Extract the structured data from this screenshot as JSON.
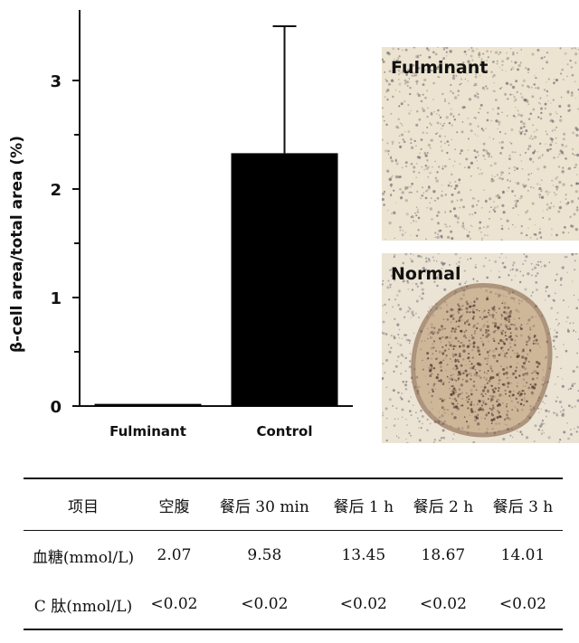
{
  "chart_data": {
    "type": "bar",
    "categories": [
      "Fulminant",
      "Control"
    ],
    "values": [
      0.02,
      2.33
    ],
    "error_upper": [
      0.0,
      3.5
    ],
    "ylabel": "β-cell area/total area (%)",
    "yticks": [
      "0",
      "1",
      "2",
      "3"
    ],
    "ylim": [
      0,
      3.6
    ],
    "bar_colors": [
      "#000000",
      "#000000"
    ]
  },
  "panels": {
    "fulminant_label": "Fulminant",
    "normal_label": "Normal"
  },
  "table": {
    "headers": [
      "项目",
      "空腹",
      "餐后 30 min",
      "餐后 1 h",
      "餐后 2 h",
      "餐后 3 h"
    ],
    "rows": [
      {
        "label": "血糖(mmol/L)",
        "values": [
          "2.07",
          "9.58",
          "13.45",
          "18.67",
          "14.01"
        ]
      },
      {
        "label": "C 肽(nmol/L)",
        "values": [
          "<0.02",
          "<0.02",
          "<0.02",
          "<0.02",
          "<0.02"
        ]
      }
    ]
  }
}
